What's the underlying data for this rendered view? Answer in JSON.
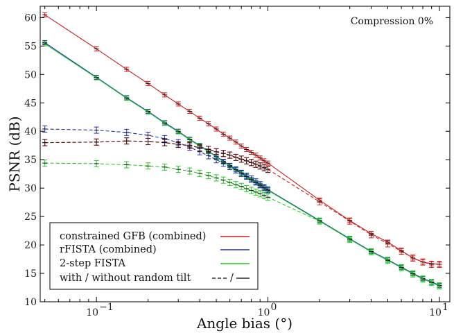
{
  "chart_data": {
    "type": "line",
    "xlabel": "Angle bias (°)",
    "ylabel": "PSNR (dB)",
    "xscale": "log",
    "xlim": [
      0.047,
      11.5
    ],
    "ylim": [
      10,
      62
    ],
    "x_ticks": [
      {
        "value": 0.1,
        "base": "10",
        "exp": "−1"
      },
      {
        "value": 1,
        "base": "10",
        "exp": "0"
      },
      {
        "value": 10,
        "base": "10",
        "exp": "1"
      }
    ],
    "y_ticks": [
      10,
      15,
      20,
      25,
      30,
      35,
      40,
      45,
      50,
      55,
      60
    ],
    "annotation": "Compression 0%",
    "legend_position": "bottom-left",
    "legend": [
      {
        "label": "constrained GFB (combined)",
        "marker": "red-line"
      },
      {
        "label": "rFISTA (combined)",
        "marker": "blue-line"
      },
      {
        "label": "2-step FISTA",
        "marker": "green-line"
      },
      {
        "label": "with / without random tilt",
        "marker": "dash-solid",
        "sep": "/"
      }
    ],
    "x_near": [
      0.05,
      0.1,
      0.15,
      0.2,
      0.25,
      0.3,
      0.35,
      0.4,
      0.45,
      0.5,
      0.55,
      0.6,
      0.65,
      0.7,
      0.75,
      0.8,
      0.85,
      0.9,
      0.95,
      1.0
    ],
    "x_far": [
      0.05,
      0.1,
      0.15,
      0.2,
      0.25,
      0.3,
      0.35,
      0.4,
      0.45,
      0.5,
      0.55,
      0.6,
      0.65,
      0.7,
      0.75,
      0.8,
      0.85,
      0.9,
      0.95,
      1.0,
      2,
      3,
      4,
      5,
      6,
      7,
      8,
      9,
      10
    ],
    "series": [
      {
        "color": "#d11a1a",
        "dashed": false,
        "group": "far",
        "values": [
          60.5,
          54.5,
          50.9,
          48.4,
          46.4,
          44.8,
          43.5,
          42.3,
          41.3,
          40.4,
          39.5,
          38.8,
          38.1,
          37.4,
          36.8,
          36.3,
          35.8,
          35.3,
          34.8,
          34.4,
          27.9,
          24.3,
          22.0,
          20.5,
          19.0,
          17.7,
          17.0,
          16.7,
          16.6
        ]
      },
      {
        "color": "#1a2fb0",
        "dashed": false,
        "group": "far",
        "values": [
          55.6,
          49.5,
          45.9,
          43.5,
          41.5,
          40.0,
          38.6,
          37.5,
          36.5,
          35.6,
          34.7,
          34.0,
          33.3,
          32.7,
          32.1,
          31.5,
          31.0,
          30.5,
          30.1,
          29.7,
          24.3,
          21.1,
          18.9,
          17.4,
          16.1,
          15.0,
          14.1,
          13.5,
          12.9
        ]
      },
      {
        "color": "#1fc91f",
        "dashed": false,
        "group": "far",
        "values": [
          55.4,
          49.4,
          45.8,
          43.4,
          41.4,
          39.9,
          38.5,
          37.4,
          36.4,
          35.5,
          34.6,
          33.9,
          33.2,
          32.6,
          32.0,
          31.4,
          30.9,
          30.4,
          30.0,
          29.6,
          24.2,
          21.0,
          18.8,
          17.3,
          16.0,
          14.9,
          14.0,
          13.4,
          12.8
        ]
      },
      {
        "color": "#d11a1a",
        "dashed": true,
        "group": "far",
        "values": [
          38.0,
          38.1,
          38.3,
          38.2,
          38.0,
          37.7,
          37.5,
          37.1,
          36.8,
          36.4,
          36.1,
          35.8,
          35.4,
          35.1,
          34.8,
          34.5,
          34.2,
          33.9,
          33.6,
          33.3,
          27.6,
          24.2,
          21.8,
          20.2,
          18.9,
          17.7,
          17.0,
          16.6,
          16.6
        ]
      },
      {
        "color": "#1a2fb0",
        "dashed": true,
        "group": "near",
        "values": [
          40.4,
          40.2,
          39.8,
          39.3,
          38.7,
          38.0,
          37.2,
          36.4,
          35.7,
          35.0,
          34.4,
          33.8,
          33.2,
          32.6,
          32.1,
          31.6,
          31.1,
          30.6,
          30.1,
          29.7
        ]
      },
      {
        "color": "#1fc91f",
        "dashed": true,
        "group": "far",
        "values": [
          34.4,
          34.3,
          34.1,
          33.9,
          33.7,
          33.3,
          33.0,
          32.6,
          32.2,
          31.8,
          31.4,
          31.0,
          30.6,
          30.3,
          29.9,
          29.6,
          29.3,
          29.0,
          28.7,
          28.4,
          24.2,
          21.0,
          18.8,
          17.3,
          16.0,
          14.9,
          14.0,
          13.4,
          12.8
        ]
      },
      {
        "color": "#5a1010",
        "dashed": true,
        "group": "near",
        "values": [
          38.0,
          38.1,
          38.3,
          38.2,
          38.0,
          37.7,
          37.5,
          37.1,
          36.8,
          36.4,
          36.1,
          35.8,
          35.4,
          35.1,
          34.8,
          34.5,
          34.2,
          33.9,
          33.6,
          33.3
        ]
      }
    ]
  }
}
